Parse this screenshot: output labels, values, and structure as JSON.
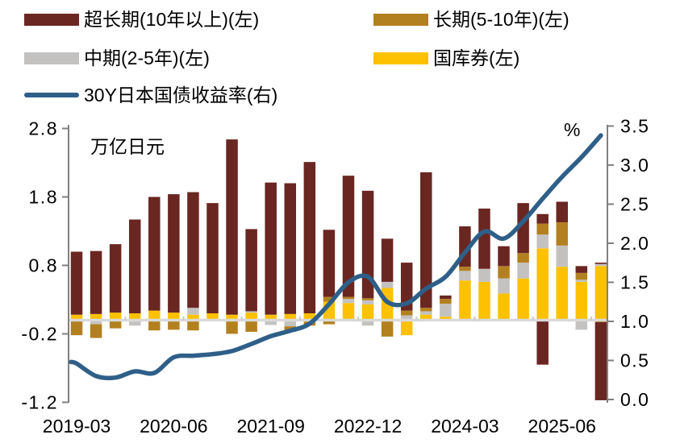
{
  "legend": {
    "items": [
      {
        "label": "超长期(10年以上)(左)",
        "color": "#6a2621",
        "type": "box"
      },
      {
        "label": "长期(5-10年)(左)",
        "color": "#b3801f",
        "type": "box"
      },
      {
        "label": "中期(2-5年)(左)",
        "color": "#c3c2c1",
        "type": "box"
      },
      {
        "label": "国库券(左)",
        "color": "#fdc101",
        "type": "box"
      },
      {
        "label": "30Y日本国债收益率(右)",
        "color": "#2e5f88",
        "type": "line"
      }
    ]
  },
  "chart_data": {
    "type": "stacked-bar+line",
    "title": "",
    "left_axis": {
      "label": "万亿日元",
      "ticks": [
        2.8,
        1.8,
        0.8,
        -0.2,
        -1.2
      ],
      "range": [
        -1.2,
        2.8
      ]
    },
    "right_axis": {
      "label": "%",
      "ticks": [
        3.5,
        3.0,
        2.5,
        2.0,
        1.5,
        1.0,
        0.5,
        0.0
      ],
      "range": [
        0.0,
        3.5
      ]
    },
    "x_ticks": [
      {
        "label": "2019-03",
        "index": 0
      },
      {
        "label": "2020-06",
        "index": 5
      },
      {
        "label": "2021-09",
        "index": 10
      },
      {
        "label": "2022-12",
        "index": 15
      },
      {
        "label": "2024-03",
        "index": 20
      },
      {
        "label": "2025-06",
        "index": 25
      }
    ],
    "categories": [
      "2019-03",
      "2019-06",
      "2019-09",
      "2019-12",
      "2020-03",
      "2020-06",
      "2020-09",
      "2020-12",
      "2021-03",
      "2021-06",
      "2021-09",
      "2021-12",
      "2022-03",
      "2022-06",
      "2022-09",
      "2022-12",
      "2023-03",
      "2023-06",
      "2023-09",
      "2023-12",
      "2024-03",
      "2024-06",
      "2024-09",
      "2024-12",
      "2025-03",
      "2025-06",
      "2025-09",
      "2025-12"
    ],
    "bar_stack_order_bottom_up": [
      "treasury_bills",
      "mid_term",
      "long_term",
      "ultra_long"
    ],
    "series": [
      {
        "key": "ultra_long",
        "name": "超长期(10年以上)(左)",
        "type": "bar",
        "axis": "left",
        "color": "#6a2621"
      },
      {
        "key": "long_term",
        "name": "长期(5-10年)(左)",
        "type": "bar",
        "axis": "left",
        "color": "#b3801f"
      },
      {
        "key": "mid_term",
        "name": "中期(2-5年)(左)",
        "type": "bar",
        "axis": "left",
        "color": "#c3c2c1"
      },
      {
        "key": "treasury_bills",
        "name": "国库券(左)",
        "type": "bar",
        "axis": "left",
        "color": "#fdc101"
      },
      {
        "key": "yield_30y",
        "name": "30Y日本国债收益率(右)",
        "type": "line",
        "axis": "right",
        "color": "#2e5f88"
      }
    ],
    "bars": [
      {
        "q": "2019-03",
        "pos": {
          "treasury_bills": 0.08,
          "mid_term": 0,
          "long_term": 0,
          "ultra_long": 0.92
        },
        "neg": {
          "treasury_bills": 0,
          "mid_term": 0,
          "long_term": 0.22,
          "ultra_long": 0
        }
      },
      {
        "q": "2019-06",
        "pos": {
          "treasury_bills": 0.09,
          "mid_term": 0,
          "long_term": 0,
          "ultra_long": 0.92
        },
        "neg": {
          "treasury_bills": 0,
          "mid_term": 0.06,
          "long_term": 0.2,
          "ultra_long": 0
        }
      },
      {
        "q": "2019-09",
        "pos": {
          "treasury_bills": 0.11,
          "mid_term": 0,
          "long_term": 0,
          "ultra_long": 1.0
        },
        "neg": {
          "treasury_bills": 0,
          "mid_term": 0,
          "long_term": 0.12,
          "ultra_long": 0
        }
      },
      {
        "q": "2019-12",
        "pos": {
          "treasury_bills": 0.1,
          "mid_term": 0,
          "long_term": 0,
          "ultra_long": 1.37
        },
        "neg": {
          "treasury_bills": 0,
          "mid_term": 0.08,
          "long_term": 0,
          "ultra_long": 0
        }
      },
      {
        "q": "2020-03",
        "pos": {
          "treasury_bills": 0.14,
          "mid_term": 0,
          "long_term": 0,
          "ultra_long": 1.66
        },
        "neg": {
          "treasury_bills": 0,
          "mid_term": 0,
          "long_term": 0.15,
          "ultra_long": 0
        }
      },
      {
        "q": "2020-06",
        "pos": {
          "treasury_bills": 0.11,
          "mid_term": 0,
          "long_term": 0,
          "ultra_long": 1.73
        },
        "neg": {
          "treasury_bills": 0,
          "mid_term": 0,
          "long_term": 0.14,
          "ultra_long": 0
        }
      },
      {
        "q": "2020-09",
        "pos": {
          "treasury_bills": 0.08,
          "mid_term": 0.1,
          "long_term": 0,
          "ultra_long": 1.69
        },
        "neg": {
          "treasury_bills": 0,
          "mid_term": 0,
          "long_term": 0.15,
          "ultra_long": 0
        }
      },
      {
        "q": "2020-12",
        "pos": {
          "treasury_bills": 0.1,
          "mid_term": 0,
          "long_term": 0,
          "ultra_long": 1.61
        },
        "neg": {
          "treasury_bills": 0,
          "mid_term": 0,
          "long_term": 0,
          "ultra_long": 0
        }
      },
      {
        "q": "2021-03",
        "pos": {
          "treasury_bills": 0.08,
          "mid_term": 0,
          "long_term": 0,
          "ultra_long": 2.56
        },
        "neg": {
          "treasury_bills": 0,
          "mid_term": 0,
          "long_term": 0.2,
          "ultra_long": 0
        }
      },
      {
        "q": "2021-06",
        "pos": {
          "treasury_bills": 0.11,
          "mid_term": 0.02,
          "long_term": 0,
          "ultra_long": 1.2
        },
        "neg": {
          "treasury_bills": 0,
          "mid_term": 0,
          "long_term": 0.17,
          "ultra_long": 0
        }
      },
      {
        "q": "2021-09",
        "pos": {
          "treasury_bills": 0.08,
          "mid_term": 0,
          "long_term": 0,
          "ultra_long": 1.93
        },
        "neg": {
          "treasury_bills": 0,
          "mid_term": 0.07,
          "long_term": 0,
          "ultra_long": 0
        }
      },
      {
        "q": "2021-12",
        "pos": {
          "treasury_bills": 0.09,
          "mid_term": 0,
          "long_term": 0,
          "ultra_long": 1.91
        },
        "neg": {
          "treasury_bills": 0,
          "mid_term": 0.09,
          "long_term": 0.08,
          "ultra_long": 0
        }
      },
      {
        "q": "2022-03",
        "pos": {
          "treasury_bills": 0.1,
          "mid_term": 0,
          "long_term": 0,
          "ultra_long": 2.21
        },
        "neg": {
          "treasury_bills": 0,
          "mid_term": 0.02,
          "long_term": 0.06,
          "ultra_long": 0
        }
      },
      {
        "q": "2022-06",
        "pos": {
          "treasury_bills": 0.27,
          "mid_term": 0,
          "long_term": 0.07,
          "ultra_long": 0.98
        },
        "neg": {
          "treasury_bills": 0,
          "mid_term": 0,
          "long_term": 0.06,
          "ultra_long": 0
        }
      },
      {
        "q": "2022-09",
        "pos": {
          "treasury_bills": 0.25,
          "mid_term": 0.06,
          "long_term": 0.03,
          "ultra_long": 1.77
        },
        "neg": {
          "treasury_bills": 0,
          "mid_term": 0,
          "long_term": 0,
          "ultra_long": 0
        }
      },
      {
        "q": "2022-12",
        "pos": {
          "treasury_bills": 0.23,
          "mid_term": 0.06,
          "long_term": 0.03,
          "ultra_long": 1.57
        },
        "neg": {
          "treasury_bills": 0,
          "mid_term": 0.08,
          "long_term": 0,
          "ultra_long": 0
        }
      },
      {
        "q": "2023-03",
        "pos": {
          "treasury_bills": 0.47,
          "mid_term": 0.09,
          "long_term": 0,
          "ultra_long": 0.63
        },
        "neg": {
          "treasury_bills": 0,
          "mid_term": 0,
          "long_term": 0.24,
          "ultra_long": 0
        }
      },
      {
        "q": "2023-06",
        "pos": {
          "treasury_bills": 0,
          "mid_term": 0.07,
          "long_term": 0.07,
          "ultra_long": 0.7
        },
        "neg": {
          "treasury_bills": 0.22,
          "mid_term": 0,
          "long_term": 0,
          "ultra_long": 0
        }
      },
      {
        "q": "2023-09",
        "pos": {
          "treasury_bills": 0.08,
          "mid_term": 0.05,
          "long_term": 0.05,
          "ultra_long": 1.98
        },
        "neg": {
          "treasury_bills": 0,
          "mid_term": 0,
          "long_term": 0,
          "ultra_long": 0
        }
      },
      {
        "q": "2023-12",
        "pos": {
          "treasury_bills": 0.05,
          "mid_term": 0.19,
          "long_term": 0.07,
          "ultra_long": 0.05
        },
        "neg": {
          "treasury_bills": 0,
          "mid_term": 0,
          "long_term": 0,
          "ultra_long": 0
        }
      },
      {
        "q": "2024-03",
        "pos": {
          "treasury_bills": 0.58,
          "mid_term": 0.14,
          "long_term": 0.06,
          "ultra_long": 0.59
        },
        "neg": {
          "treasury_bills": 0,
          "mid_term": 0,
          "long_term": 0,
          "ultra_long": 0
        }
      },
      {
        "q": "2024-06",
        "pos": {
          "treasury_bills": 0.56,
          "mid_term": 0.19,
          "long_term": 0,
          "ultra_long": 0.88
        },
        "neg": {
          "treasury_bills": 0,
          "mid_term": 0,
          "long_term": 0,
          "ultra_long": 0
        }
      },
      {
        "q": "2024-09",
        "pos": {
          "treasury_bills": 0.39,
          "mid_term": 0.22,
          "long_term": 0.18,
          "ultra_long": 0.29
        },
        "neg": {
          "treasury_bills": 0,
          "mid_term": 0,
          "long_term": 0,
          "ultra_long": 0
        }
      },
      {
        "q": "2024-12",
        "pos": {
          "treasury_bills": 0.61,
          "mid_term": 0.23,
          "long_term": 0.14,
          "ultra_long": 0.73
        },
        "neg": {
          "treasury_bills": 0,
          "mid_term": 0,
          "long_term": 0,
          "ultra_long": 0
        }
      },
      {
        "q": "2025-03",
        "pos": {
          "treasury_bills": 1.05,
          "mid_term": 0.2,
          "long_term": 0.16,
          "ultra_long": 0.14
        },
        "neg": {
          "treasury_bills": 0,
          "mid_term": 0,
          "long_term": 0,
          "ultra_long": 0.65
        }
      },
      {
        "q": "2025-06",
        "pos": {
          "treasury_bills": 0.78,
          "mid_term": 0.31,
          "long_term": 0.34,
          "ultra_long": 0.3
        },
        "neg": {
          "treasury_bills": 0,
          "mid_term": 0,
          "long_term": 0,
          "ultra_long": 0
        }
      },
      {
        "q": "2025-09",
        "pos": {
          "treasury_bills": 0.56,
          "mid_term": 0.03,
          "long_term": 0.1,
          "ultra_long": 0.1
        },
        "neg": {
          "treasury_bills": 0,
          "mid_term": 0.14,
          "long_term": 0,
          "ultra_long": 0
        }
      },
      {
        "q": "2025-12",
        "pos": {
          "treasury_bills": 0.79,
          "mid_term": 0.03,
          "long_term": 0,
          "ultra_long": 0.02
        },
        "neg": {
          "treasury_bills": 0,
          "mid_term": 0,
          "long_term": 0.03,
          "ultra_long": 1.14
        }
      }
    ],
    "line_values": [
      0.46,
      0.3,
      0.28,
      0.36,
      0.34,
      0.54,
      0.56,
      0.58,
      0.62,
      0.71,
      0.81,
      0.88,
      0.97,
      1.22,
      1.5,
      1.57,
      1.25,
      1.23,
      1.42,
      1.57,
      1.88,
      2.15,
      2.06,
      2.28,
      2.57,
      2.85,
      3.1,
      3.38
    ],
    "grid": "off",
    "legend_position": "top"
  },
  "style_colors": {
    "axis_line": "#808080",
    "zero_line": "#d9d9d9",
    "text": "#000000"
  }
}
